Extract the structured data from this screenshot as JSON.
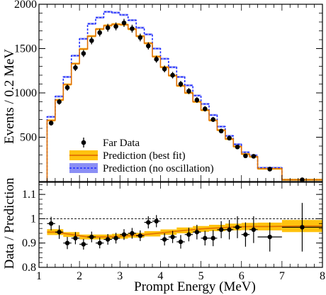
{
  "chart_data": {
    "type": "line",
    "xlabel": "Prompt Energy (MeV)",
    "x_ticks": [
      "1",
      "2",
      "3",
      "4",
      "5",
      "6",
      "7",
      "8"
    ],
    "bin_edges": [
      1.2,
      1.4,
      1.6,
      1.8,
      2.0,
      2.2,
      2.4,
      2.6,
      2.8,
      3.0,
      3.2,
      3.4,
      3.6,
      3.8,
      4.0,
      4.2,
      4.4,
      4.6,
      4.8,
      5.0,
      5.2,
      5.4,
      5.6,
      5.8,
      6.0,
      6.2,
      6.4,
      7.0,
      8.0
    ],
    "bin_centers": [
      1.3,
      1.5,
      1.7,
      1.9,
      2.1,
      2.3,
      2.5,
      2.7,
      2.9,
      3.1,
      3.3,
      3.5,
      3.7,
      3.9,
      4.1,
      4.3,
      4.5,
      4.7,
      4.9,
      5.1,
      5.3,
      5.5,
      5.7,
      5.9,
      6.1,
      6.3,
      6.7,
      7.5
    ],
    "top_panel": {
      "ylabel": "Events / 0.2 MeV",
      "ylim": [
        0,
        2000
      ],
      "y_ticks": [
        "500",
        "1000",
        "1500",
        "2000"
      ],
      "series": [
        {
          "name": "Far Data",
          "values": [
            660,
            900,
            1060,
            1285,
            1445,
            1590,
            1680,
            1735,
            1750,
            1790,
            1725,
            1625,
            1530,
            1380,
            1270,
            1200,
            1100,
            1020,
            920,
            820,
            700,
            570,
            490,
            390,
            290,
            285,
            140,
            20
          ],
          "errors": [
            28,
            32,
            35,
            38,
            40,
            42,
            43,
            44,
            44,
            45,
            44,
            43,
            41,
            39,
            38,
            37,
            35,
            34,
            32,
            30,
            28,
            26,
            24,
            22,
            20,
            18,
            13,
            5
          ]
        },
        {
          "name": "Prediction (best fit)",
          "values": [
            690,
            920,
            1095,
            1330,
            1495,
            1640,
            1720,
            1760,
            1775,
            1770,
            1720,
            1640,
            1560,
            1410,
            1290,
            1195,
            1080,
            1000,
            900,
            805,
            690,
            580,
            480,
            395,
            310,
            280,
            145,
            20
          ],
          "band": 12
        },
        {
          "name": "Prediction (no oscillation)",
          "values": [
            730,
            960,
            1180,
            1420,
            1610,
            1780,
            1850,
            1915,
            1905,
            1880,
            1820,
            1735,
            1660,
            1500,
            1385,
            1290,
            1180,
            1085,
            970,
            875,
            750,
            620,
            515,
            420,
            330,
            295,
            155,
            20
          ],
          "band": 12
        }
      ]
    },
    "bottom_panel": {
      "ylabel": "Data / Prediction",
      "ylim": [
        0.8,
        1.15
      ],
      "y_ticks": [
        "0.8",
        "0.9",
        "1",
        "1.1"
      ],
      "reference_line": 1,
      "band": {
        "edges": [
          1.2,
          1.6,
          2.0,
          2.4,
          2.8,
          3.2,
          3.6,
          4.0,
          4.4,
          4.8,
          5.2,
          5.6,
          6.0,
          6.4,
          7.0,
          8.0
        ],
        "centers": [
          0.945,
          0.935,
          0.925,
          0.925,
          0.928,
          0.932,
          0.938,
          0.945,
          0.952,
          0.958,
          0.962,
          0.966,
          0.968,
          0.968,
          0.97
        ],
        "halfwidths": [
          0.012,
          0.01,
          0.01,
          0.01,
          0.01,
          0.01,
          0.011,
          0.011,
          0.012,
          0.012,
          0.013,
          0.014,
          0.015,
          0.016,
          0.025
        ]
      },
      "ratio_points": [
        {
          "x": 1.3,
          "y": 0.98,
          "err": 0.028,
          "xerr": 0.1
        },
        {
          "x": 1.5,
          "y": 0.945,
          "err": 0.028,
          "xerr": 0.1
        },
        {
          "x": 1.7,
          "y": 0.9,
          "err": 0.025,
          "xerr": 0.1
        },
        {
          "x": 1.9,
          "y": 0.92,
          "err": 0.025,
          "xerr": 0.1
        },
        {
          "x": 2.1,
          "y": 0.895,
          "err": 0.022,
          "xerr": 0.1
        },
        {
          "x": 2.3,
          "y": 0.925,
          "err": 0.022,
          "xerr": 0.1
        },
        {
          "x": 2.5,
          "y": 0.9,
          "err": 0.022,
          "xerr": 0.1
        },
        {
          "x": 2.7,
          "y": 0.915,
          "err": 0.022,
          "xerr": 0.1
        },
        {
          "x": 2.9,
          "y": 0.92,
          "err": 0.022,
          "xerr": 0.1
        },
        {
          "x": 3.1,
          "y": 0.935,
          "err": 0.022,
          "xerr": 0.1
        },
        {
          "x": 3.3,
          "y": 0.94,
          "err": 0.022,
          "xerr": 0.1
        },
        {
          "x": 3.5,
          "y": 0.93,
          "err": 0.022,
          "xerr": 0.1
        },
        {
          "x": 3.7,
          "y": 0.985,
          "err": 0.025,
          "xerr": 0.1
        },
        {
          "x": 3.9,
          "y": 0.99,
          "err": 0.025,
          "xerr": 0.1
        },
        {
          "x": 4.1,
          "y": 0.915,
          "err": 0.025,
          "xerr": 0.1
        },
        {
          "x": 4.3,
          "y": 0.925,
          "err": 0.025,
          "xerr": 0.1
        },
        {
          "x": 4.5,
          "y": 0.905,
          "err": 0.028,
          "xerr": 0.1
        },
        {
          "x": 4.7,
          "y": 0.935,
          "err": 0.028,
          "xerr": 0.1
        },
        {
          "x": 4.9,
          "y": 0.945,
          "err": 0.03,
          "xerr": 0.1
        },
        {
          "x": 5.1,
          "y": 0.92,
          "err": 0.03,
          "xerr": 0.1
        },
        {
          "x": 5.3,
          "y": 0.92,
          "err": 0.033,
          "xerr": 0.1
        },
        {
          "x": 5.5,
          "y": 0.955,
          "err": 0.035,
          "xerr": 0.1
        },
        {
          "x": 5.7,
          "y": 0.955,
          "err": 0.04,
          "xerr": 0.1
        },
        {
          "x": 5.9,
          "y": 0.965,
          "err": 0.045,
          "xerr": 0.1
        },
        {
          "x": 6.1,
          "y": 0.935,
          "err": 0.05,
          "xerr": 0.1
        },
        {
          "x": 6.3,
          "y": 0.955,
          "err": 0.055,
          "xerr": 0.1
        },
        {
          "x": 6.7,
          "y": 0.925,
          "err": 0.06,
          "xerr": 0.3
        },
        {
          "x": 7.5,
          "y": 0.965,
          "err": 0.1,
          "xerr": 0.5
        }
      ]
    },
    "legend": {
      "position": "bottom-left",
      "entries": [
        "Far Data",
        "Prediction (best fit)",
        "Prediction (no oscillation)"
      ]
    },
    "colors": {
      "data": "#000000",
      "best_fit_line": "#e07000",
      "best_fit_band": "#ffc20e",
      "no_osc_line": "#1f2dff",
      "no_osc_band": "#8b8ff5"
    }
  }
}
